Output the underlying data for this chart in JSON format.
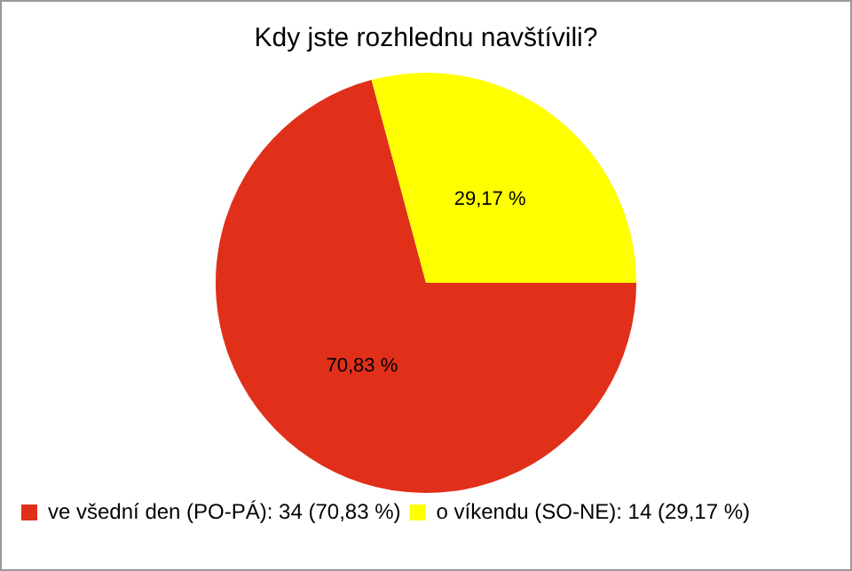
{
  "chart_data": {
    "type": "pie",
    "title": "Kdy jste rozhlednu navštívili?",
    "categories": [
      "ve všední den (PO-PÁ): 34 (70,83 %)",
      "o víkendu (SO-NE): 14 (29,17 %)"
    ],
    "values": [
      70.83,
      29.17
    ],
    "colors": [
      "#e0301a",
      "#ffff00"
    ],
    "value_labels": [
      "70,83 %",
      "29,17 %"
    ],
    "legend": "bottom left"
  }
}
